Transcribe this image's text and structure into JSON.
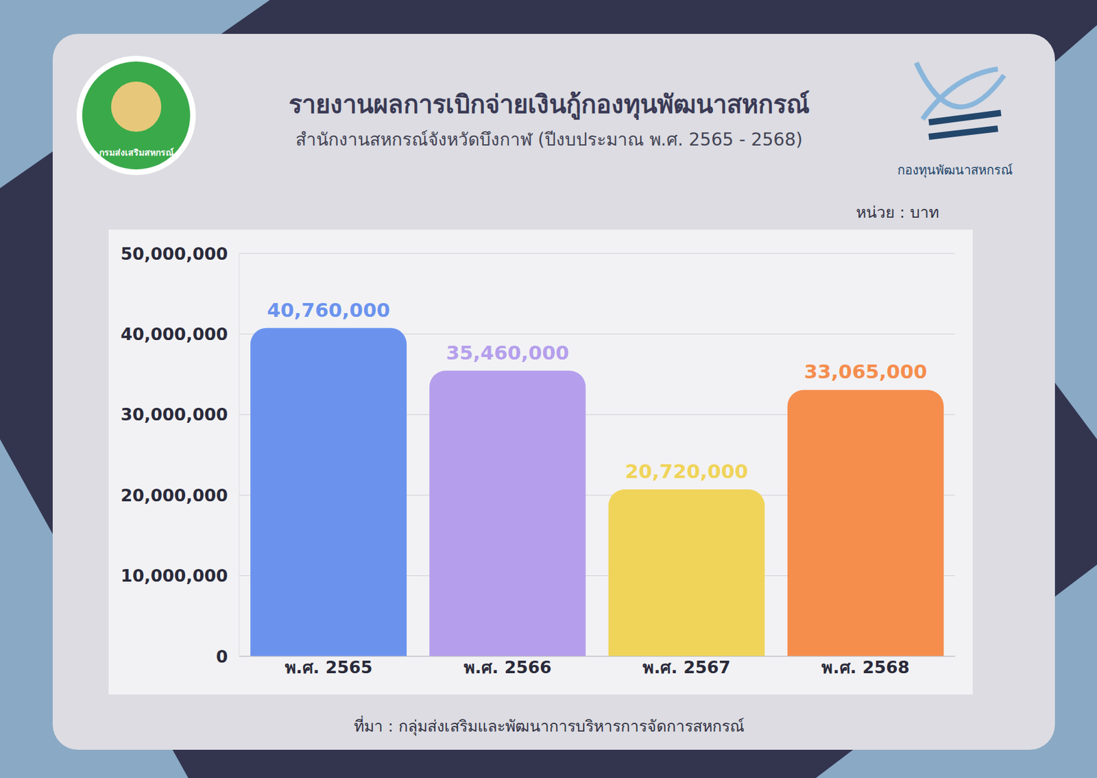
{
  "chart_data": {
    "type": "bar",
    "title": "รายงานผลการเบิกจ่ายเงินกู้กองทุนพัฒนาสหกรณ์",
    "subtitle": "สำนักงานสหกรณ์จังหวัดบึงกาฬ (ปีงบประมาณ พ.ศ. 2565 - 2568)",
    "y_label": "หน่วย : บาท",
    "source": "ที่มา : กลุ่มส่งเสริมและพัฒนาการบริหารการจัดการสหกรณ์",
    "annotations": [
      "กรมส่งเสริมสหกรณ์",
      "กองทุนพัฒนาสหกรณ์"
    ],
    "categories": [
      "พ.ศ. 2565",
      "พ.ศ. 2566",
      "พ.ศ. 2567",
      "พ.ศ. 2568"
    ],
    "values": [
      40760000,
      35460000,
      20720000,
      33065000
    ],
    "value_labels": [
      "40,760,000",
      "35,460,000",
      "20,720,000",
      "33,065,000"
    ],
    "colors": [
      "#6b93ee",
      "#b59fec",
      "#f0d45a",
      "#f58d4d"
    ],
    "ylim": [
      0,
      50000000
    ],
    "yticks": [
      0,
      {
        "value": 10000000,
        "label": "10,000,000"
      },
      {
        "value": 20000000,
        "label": "20,000,000"
      },
      {
        "value": 30000000,
        "label": "30,000,000"
      },
      {
        "value": 40000000,
        "label": "40,000,000"
      },
      {
        "value": 50000000,
        "label": "50,000,000"
      }
    ],
    "grid": true,
    "data_labels": true
  }
}
